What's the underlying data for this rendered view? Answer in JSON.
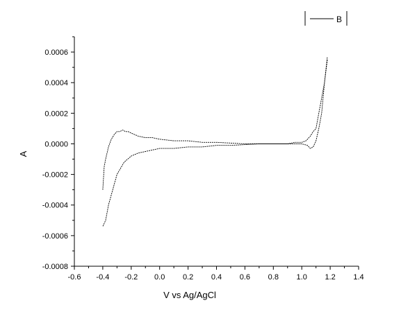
{
  "chart_data": {
    "type": "line",
    "title": "",
    "xlabel": "V vs Ag/AgCl",
    "ylabel": "A",
    "xlim": [
      -0.6,
      1.4
    ],
    "ylim": [
      -0.0008,
      0.0007
    ],
    "x_ticks": [
      "-0.6",
      "-0.4",
      "-0.2",
      "0.0",
      "0.2",
      "0.4",
      "0.6",
      "0.8",
      "1.0",
      "1.2",
      "1.4"
    ],
    "y_ticks": [
      "-0.0008",
      "-0.0006",
      "-0.0004",
      "-0.0002",
      "0.0000",
      "0.0002",
      "0.0004",
      "0.0006"
    ],
    "grid": false,
    "legend_position": "top-right",
    "series": [
      {
        "name": "B",
        "x": [
          -0.4,
          -0.39,
          -0.38,
          -0.36,
          -0.34,
          -0.32,
          -0.3,
          -0.28,
          -0.26,
          -0.24,
          -0.22,
          -0.2,
          -0.15,
          -0.1,
          -0.05,
          0.0,
          0.1,
          0.2,
          0.3,
          0.4,
          0.5,
          0.6,
          0.7,
          0.8,
          0.9,
          0.95,
          1.0,
          1.03,
          1.06,
          1.08,
          1.1,
          1.12,
          1.14,
          1.16,
          1.18
        ],
        "y": [
          -0.0003,
          -0.00015,
          -0.0001,
          -2e-05,
          3e-05,
          6e-05,
          8e-05,
          8e-05,
          9e-05,
          8e-05,
          8e-05,
          7e-05,
          5e-05,
          4e-05,
          4e-05,
          3e-05,
          2e-05,
          2e-05,
          1e-05,
          1e-05,
          5e-06,
          0.0,
          0.0,
          0.0,
          0.0,
          1e-05,
          1e-05,
          2e-05,
          5e-05,
          8e-05,
          0.0001,
          0.0002,
          0.0003,
          0.0004,
          0.00057
        ]
      },
      {
        "name": "",
        "x": [
          1.18,
          1.16,
          1.14,
          1.12,
          1.1,
          1.08,
          1.06,
          1.04,
          1.0,
          0.95,
          0.9,
          0.8,
          0.7,
          0.6,
          0.5,
          0.4,
          0.3,
          0.2,
          0.1,
          0.0,
          -0.05,
          -0.1,
          -0.15,
          -0.2,
          -0.25,
          -0.3,
          -0.33,
          -0.36,
          -0.38,
          -0.4
        ],
        "y": [
          0.00055,
          0.0004,
          0.0002,
          0.0001,
          2e-05,
          -2e-05,
          -3e-05,
          -1e-05,
          0.0,
          0.0,
          0.0,
          0.0,
          0.0,
          -5e-06,
          -1e-05,
          -1e-05,
          -2e-05,
          -2e-05,
          -3e-05,
          -3e-05,
          -4e-05,
          -5e-05,
          -6e-05,
          -8e-05,
          -0.00012,
          -0.0002,
          -0.0003,
          -0.0004,
          -0.0005,
          -0.00054
        ]
      }
    ]
  }
}
